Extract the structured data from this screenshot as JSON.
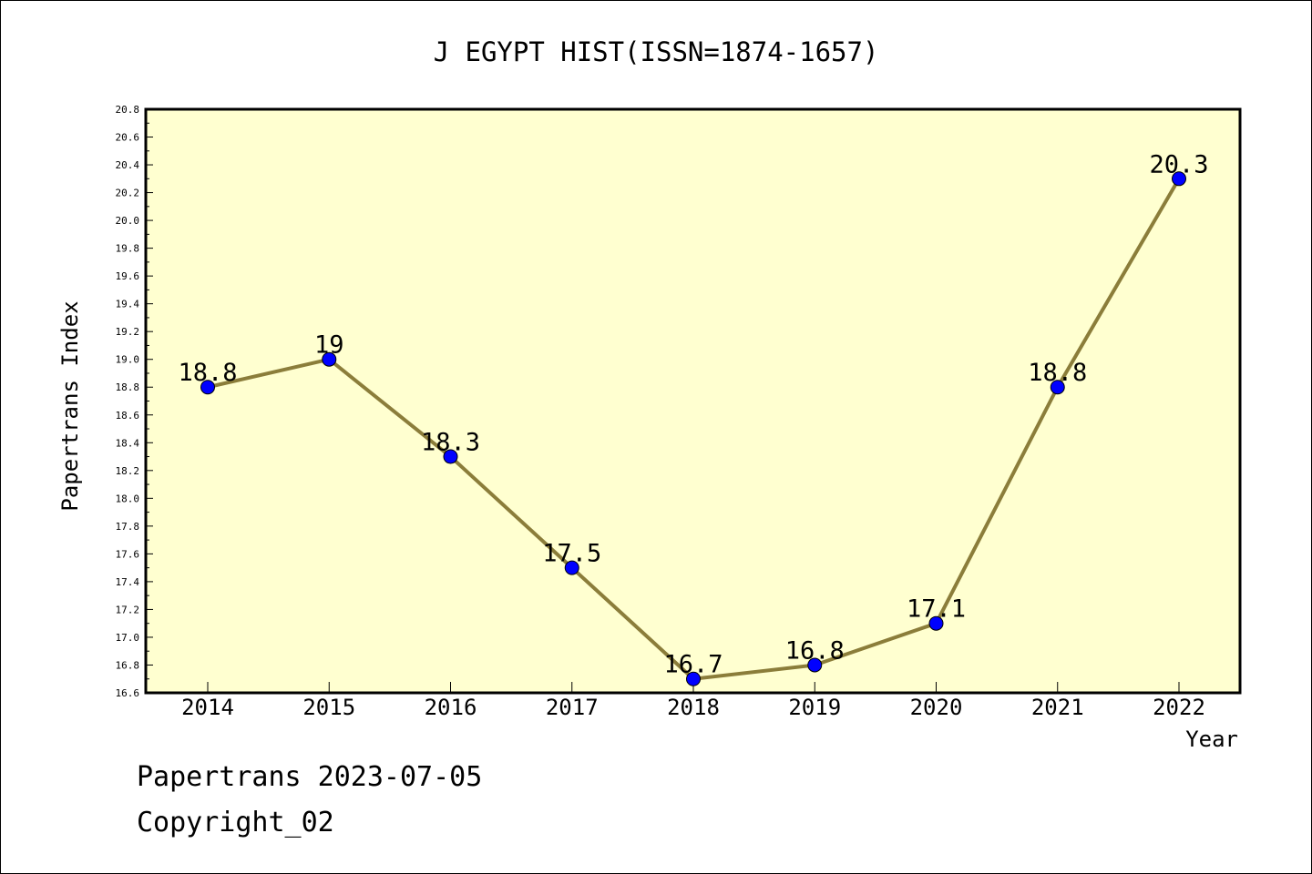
{
  "chart_data": {
    "type": "line",
    "title": "J EGYPT HIST(ISSN=1874-1657)",
    "xlabel": "Year",
    "ylabel": "Papertrans Index",
    "categories": [
      "2014",
      "2015",
      "2016",
      "2017",
      "2018",
      "2019",
      "2020",
      "2021",
      "2022"
    ],
    "series": [
      {
        "values": [
          18.8,
          19.0,
          18.3,
          17.5,
          16.7,
          16.8,
          17.1,
          18.8,
          20.3
        ]
      }
    ],
    "data_labels": [
      "18.8",
      "19",
      "18.3",
      "17.5",
      "16.7",
      "16.8",
      "17.1",
      "18.8",
      "20.3"
    ],
    "ylim": [
      16.6,
      20.8
    ],
    "yticks": [
      "16.6",
      "16.8",
      "17.0",
      "17.2",
      "17.4",
      "17.6",
      "17.8",
      "18.0",
      "18.2",
      "18.4",
      "18.6",
      "18.8",
      "19.0",
      "19.2",
      "19.4",
      "19.6",
      "19.8",
      "20.0",
      "20.2",
      "20.4",
      "20.6",
      "20.8"
    ],
    "grid": false,
    "legend": "none",
    "colors": {
      "plot_background": "#ffffd0",
      "line": "#8b7d3a",
      "marker": "#0000ff"
    }
  },
  "footer": {
    "line1": "Papertrans 2023-07-05",
    "line2": "Copyright_02"
  }
}
